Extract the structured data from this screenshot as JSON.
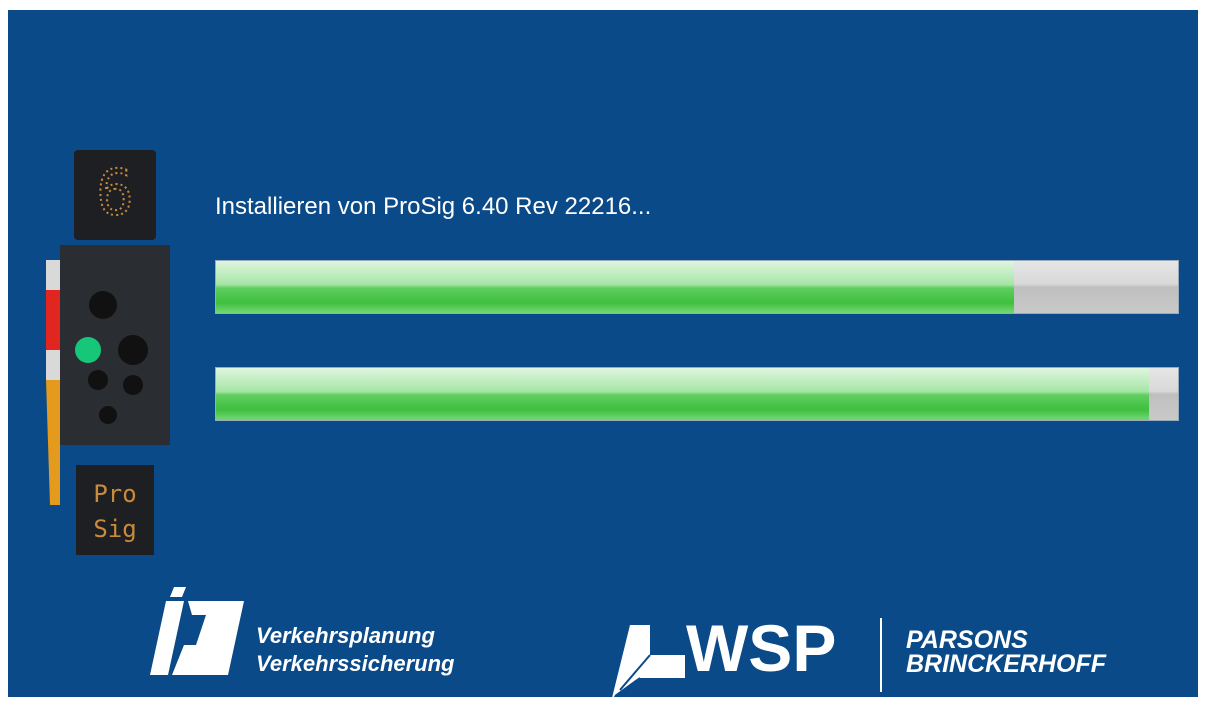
{
  "status": {
    "text": "Installieren von ProSig 6.40 Rev 22216..."
  },
  "progress": {
    "range": [
      0,
      100
    ],
    "bars": [
      {
        "value": 83
      },
      {
        "value": 97
      }
    ]
  },
  "signal": {
    "top_digit": "6",
    "bottom_lines": [
      "Pro",
      "Sig"
    ]
  },
  "logos": {
    "left": {
      "lines": [
        "Verkehrsplanung",
        "Verkehrssicherung"
      ]
    },
    "right": {
      "wsp": "WSP",
      "lines": [
        "PARSONS",
        "BRINCKERHOFF"
      ]
    }
  }
}
